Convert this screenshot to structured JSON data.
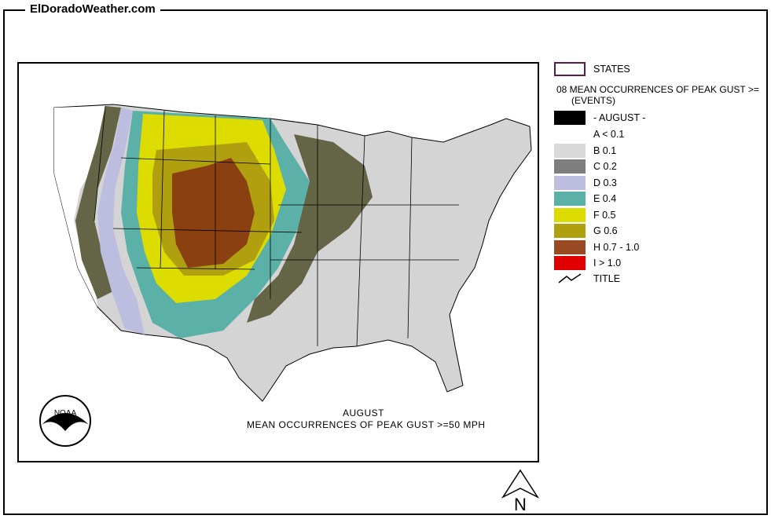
{
  "site_title": "ElDoradoWeather.com",
  "map_caption": {
    "line1": "AUGUST",
    "line2": "MEAN OCCURRENCES OF PEAK GUST >=50 MPH"
  },
  "logo_text": "NOAA",
  "legend": {
    "states_label": "STATES",
    "heading_line1": "08 MEAN OCCURRENCES OF PEAK GUST >=",
    "heading_line2": "(EVENTS)",
    "month_label": "- AUGUST -",
    "classes": [
      {
        "label": "A < 0.1",
        "color": "#ffffff"
      },
      {
        "label": "B 0.1",
        "color": "#d9d9d9"
      },
      {
        "label": "C 0.2",
        "color": "#7e7e7e"
      },
      {
        "label": "D 0.3",
        "color": "#bdbde0"
      },
      {
        "label": "E 0.4",
        "color": "#5bb0a8"
      },
      {
        "label": "F 0.5",
        "color": "#dcdc00"
      },
      {
        "label": "G 0.6",
        "color": "#b0a010"
      },
      {
        "label": "H 0.7 - 1.0",
        "color": "#9a4a22"
      },
      {
        "label": "I > 1.0",
        "color": "#e00000"
      }
    ],
    "title_label": "TITLE"
  },
  "map_colors": {
    "land_light": "#d4d4d4",
    "band_dark": "#646446",
    "band_d": "#bdbde0",
    "band_e": "#5bb0a8",
    "band_f": "#dcdc00",
    "band_g": "#b0a010",
    "band_h": "#8a4010",
    "state_border": "#000000"
  },
  "north_label": "N"
}
